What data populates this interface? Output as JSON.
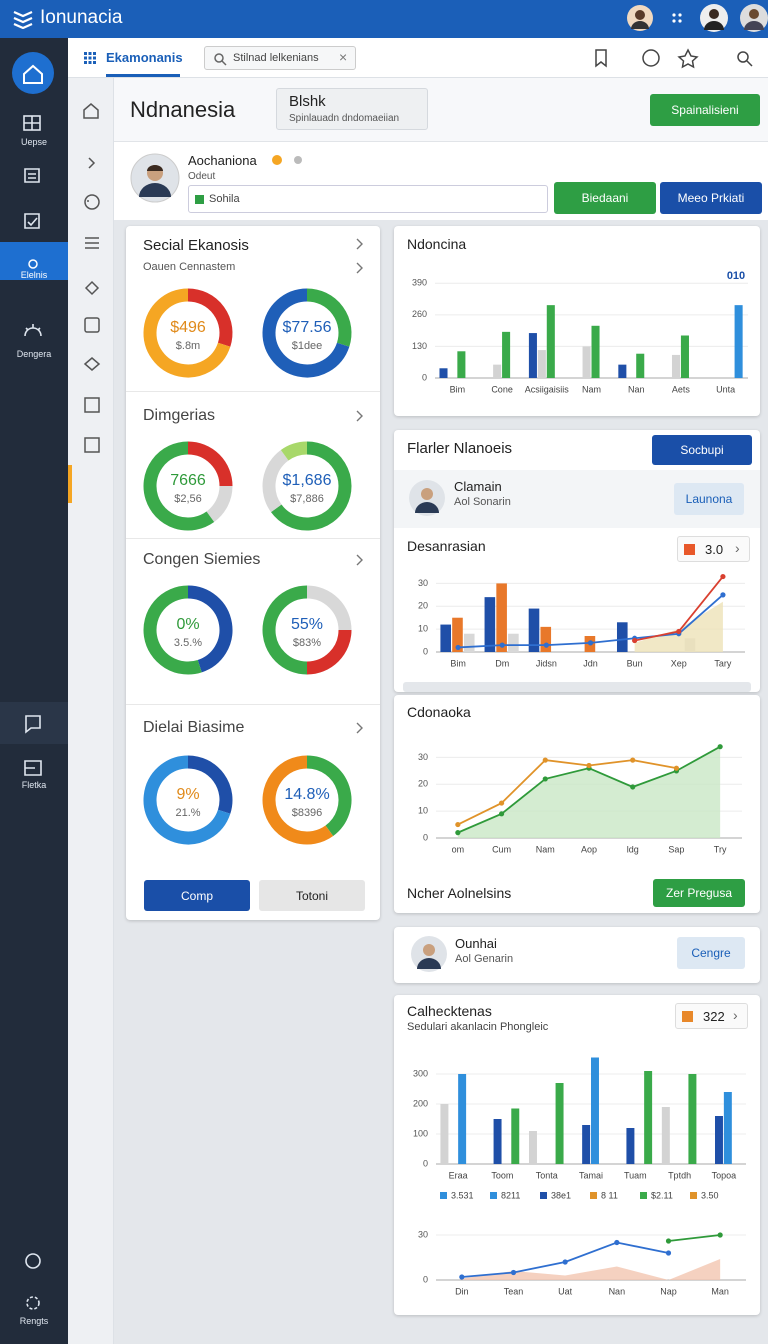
{
  "topbar": {
    "title": "Ionunacia"
  },
  "sidebar": {
    "items": [
      "Uepse",
      "Elelnis",
      "Dengera",
      "Fletka",
      "Rengts"
    ]
  },
  "header": {
    "tab": "Ekamonanis",
    "search": "Stilnad lelkenians"
  },
  "page": {
    "title": "Ndnanesia",
    "box_title": "Blshk",
    "box_sub": "Spinlauadn dndomaeiian",
    "button": "Spainalisieni"
  },
  "profile": {
    "name": "Aochaniona",
    "role": "Odeut",
    "input": "Sohila",
    "buttons": [
      "Biedaani",
      "Meeo Prkiati"
    ]
  },
  "donut_card": {
    "sections": [
      {
        "title": "Secial Ekanosis",
        "subtitle": "Oauen Cennastem",
        "donuts": [
          {
            "value": "$496",
            "sub": "$.8m",
            "color": "#e08a1a",
            "segments": [
              {
                "color": "#d8302a",
                "value": 30
              },
              {
                "color": "#f5a623",
                "value": 70
              }
            ]
          },
          {
            "value": "$77.56",
            "sub": "$1dee",
            "color": "#1f5fb8",
            "segments": [
              {
                "color": "#3aaa4a",
                "value": 30
              },
              {
                "color": "#1f5fb8",
                "value": 70
              }
            ]
          }
        ]
      },
      {
        "title": "Dimgerias",
        "donuts": [
          {
            "value": "7666",
            "sub": "$2,56",
            "color": "#2f9a3a",
            "segments": [
              {
                "color": "#d8302a",
                "value": 25
              },
              {
                "color": "#d8d8d8",
                "value": 15
              },
              {
                "color": "#3aaa4a",
                "value": 60
              }
            ]
          },
          {
            "value": "$1,686",
            "sub": "$7,886",
            "color": "#1f5fb8",
            "segments": [
              {
                "color": "#3aaa4a",
                "value": 65
              },
              {
                "color": "#d8d8d8",
                "value": 25
              },
              {
                "color": "#a8d86a",
                "value": 10
              }
            ]
          }
        ]
      },
      {
        "title": "Congen Siemies",
        "donuts": [
          {
            "value": "0%",
            "sub": "3.5.%",
            "color": "#2f9a3a",
            "segments": [
              {
                "color": "#1f4fa8",
                "value": 45
              },
              {
                "color": "#3aaa4a",
                "value": 55
              }
            ]
          },
          {
            "value": "55%",
            "sub": "$83%",
            "color": "#1f5fb8",
            "segments": [
              {
                "color": "#d8d8d8",
                "value": 25
              },
              {
                "color": "#d8302a",
                "value": 25
              },
              {
                "color": "#3aaa4a",
                "value": 50
              }
            ]
          }
        ]
      },
      {
        "title": "Dielai Biasime",
        "donuts": [
          {
            "value": "9%",
            "sub": "21.%",
            "color": "#e08a1a",
            "segments": [
              {
                "color": "#1f4fa8",
                "value": 30
              },
              {
                "color": "#2f8fdc",
                "value": 70
              }
            ]
          },
          {
            "value": "14.8%",
            "sub": "$8396",
            "color": "#1f5fb8",
            "segments": [
              {
                "color": "#3aaa4a",
                "value": 40
              },
              {
                "color": "#f08a1a",
                "value": 60
              }
            ]
          }
        ]
      }
    ],
    "buttons": [
      "Comp",
      "Totoni"
    ]
  },
  "panels": {
    "flarler": {
      "title": "Flarler Nlanoeis",
      "button": "Socbupi",
      "person": "Clamain",
      "person_sub": "Aol Sonarin",
      "person_button": "Launona"
    },
    "ncher": {
      "title": "Ncher Aolnelsins",
      "button": "Zer Pregusa"
    },
    "ounhai": {
      "person": "Ounhai",
      "person_sub": "Aol Genarin",
      "button": "Cengre"
    }
  },
  "chart_data": [
    {
      "type": "bar",
      "title": "Ndoncina",
      "annotation": "010",
      "grid": true,
      "categories": [
        "Bim",
        "Cone",
        "Acsiigaisiis",
        "Nam",
        "Nan",
        "Aets",
        "Unta"
      ],
      "ylim": [
        0,
        420
      ],
      "yticks": [
        0,
        130,
        260,
        390
      ],
      "series": [
        {
          "kind": "bar",
          "color": "#1f4fa8",
          "values": [
            40,
            null,
            185,
            null,
            55,
            null,
            null
          ]
        },
        {
          "kind": "bar",
          "color": "#d3d3d3",
          "values": [
            null,
            55,
            115,
            130,
            null,
            95,
            null
          ]
        },
        {
          "kind": "bar",
          "color": "#3aaa4a",
          "values": [
            110,
            190,
            300,
            215,
            100,
            175,
            null
          ]
        },
        {
          "kind": "bar",
          "color": "#2f8fdc",
          "values": [
            null,
            null,
            null,
            null,
            null,
            null,
            300
          ]
        }
      ]
    },
    {
      "type": "bar",
      "title": "Desanrasian",
      "badge": "3.0",
      "grid": true,
      "categories": [
        "Bim",
        "Dm",
        "Jidsn",
        "Jdn",
        "Bun",
        "Xep",
        "Tary"
      ],
      "ylim": [
        0,
        35
      ],
      "yticks": [
        0,
        10,
        20,
        30
      ],
      "series": [
        {
          "kind": "bar",
          "color": "#1f4fa8",
          "values": [
            12,
            24,
            19,
            null,
            13,
            null,
            null
          ]
        },
        {
          "kind": "bar",
          "color": "#e8782a",
          "values": [
            15,
            30,
            11,
            7,
            null,
            null,
            null
          ]
        },
        {
          "kind": "bar",
          "color": "#d8d8d8",
          "values": [
            8,
            8,
            null,
            null,
            null,
            6,
            null
          ]
        },
        {
          "kind": "area",
          "color": "#eee2b8",
          "values": [
            null,
            null,
            null,
            null,
            4,
            10,
            22
          ]
        },
        {
          "kind": "line",
          "color": "#2f6fd0",
          "values": [
            2,
            3,
            3,
            4,
            6,
            8,
            25
          ]
        },
        {
          "kind": "line",
          "color": "#d94030",
          "values": [
            null,
            null,
            null,
            null,
            5,
            9,
            33
          ]
        }
      ]
    },
    {
      "type": "line",
      "title": "Cdonaoka",
      "grid": true,
      "categories": [
        "om",
        "Cum",
        "Nam",
        "Aop",
        "ldg",
        "Sap",
        "Try"
      ],
      "ylim": [
        0,
        35
      ],
      "yticks": [
        0,
        10,
        20,
        30
      ],
      "series": [
        {
          "kind": "area",
          "color": "#c9e7c6",
          "values": [
            2,
            9,
            22,
            26,
            19,
            25,
            34
          ]
        },
        {
          "kind": "line",
          "color": "#2f9a3a",
          "values": [
            2,
            9,
            22,
            26,
            19,
            25,
            34
          ]
        },
        {
          "kind": "line",
          "color": "#e0932a",
          "values": [
            5,
            13,
            29,
            27,
            29,
            26,
            null
          ]
        }
      ]
    },
    {
      "type": "bar",
      "title": "Calhecktenas",
      "subtitle": "Sedulari akanlacin Phongleic",
      "badge": "322",
      "grid": true,
      "categories": [
        "Eraa",
        "Toom",
        "Tonta",
        "Tamai",
        "Tuam",
        "Tptdh",
        "Topoa"
      ],
      "ylim": [
        0,
        360
      ],
      "yticks": [
        0,
        100,
        200,
        300
      ],
      "series": [
        {
          "kind": "bar",
          "color": "#d3d3d3",
          "values": [
            200,
            null,
            110,
            null,
            null,
            190,
            null
          ]
        },
        {
          "kind": "bar",
          "color": "#1f4fa8",
          "values": [
            null,
            150,
            null,
            130,
            120,
            null,
            160
          ]
        },
        {
          "kind": "bar",
          "color": "#2f8fdc",
          "values": [
            300,
            null,
            null,
            355,
            null,
            null,
            240
          ]
        },
        {
          "kind": "bar",
          "color": "#3aaa4a",
          "values": [
            null,
            185,
            270,
            null,
            310,
            300,
            null
          ]
        }
      ],
      "legend": [
        {
          "label": "3.531",
          "color": "#2f8fdc"
        },
        {
          "label": "8211",
          "color": "#2f8fdc"
        },
        {
          "label": "38e1",
          "color": "#1f4fa8"
        },
        {
          "label": "8 11",
          "color": "#e0932a"
        },
        {
          "label": "$2.11",
          "color": "#3aaa4a"
        },
        {
          "label": "3.50",
          "color": "#e0932a"
        }
      ]
    },
    {
      "type": "line",
      "grid": true,
      "categories": [
        "Din",
        "Tean",
        "Uat",
        "Nan",
        "Nap",
        "Man"
      ],
      "ylim": [
        0,
        36
      ],
      "yticks": [
        0,
        30
      ],
      "series": [
        {
          "kind": "area",
          "color": "#f2c6b0",
          "values": [
            1,
            6,
            3,
            9,
            0,
            14
          ]
        },
        {
          "kind": "line",
          "color": "#2f6fd0",
          "values": [
            2,
            5,
            12,
            25,
            18,
            null
          ]
        },
        {
          "kind": "line",
          "color": "#2f9a3a",
          "values": [
            null,
            null,
            null,
            null,
            26,
            30
          ]
        }
      ]
    }
  ]
}
